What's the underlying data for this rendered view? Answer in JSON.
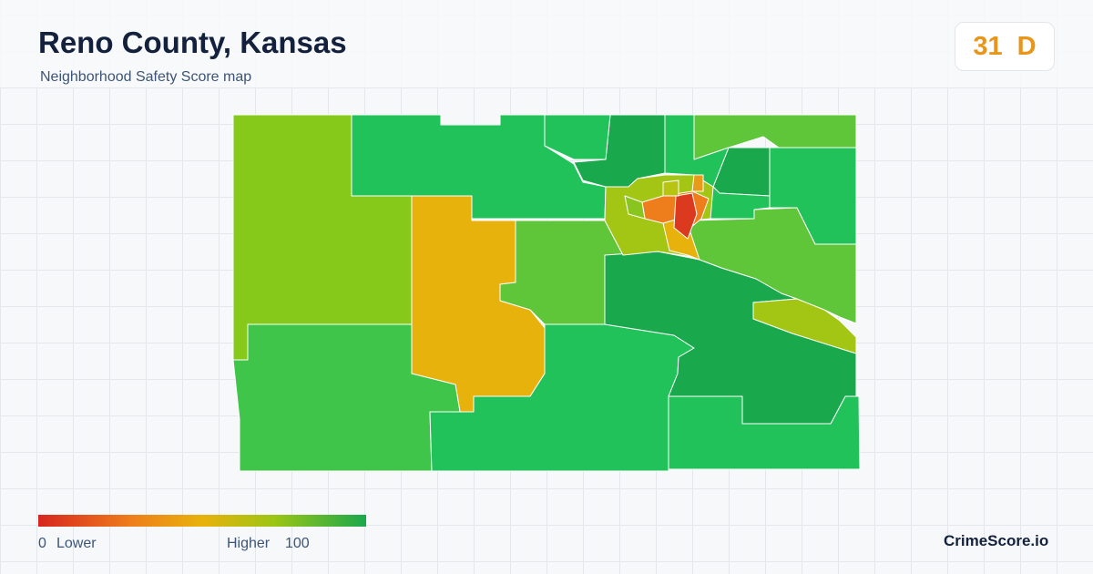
{
  "header": {
    "title": "Reno County, Kansas",
    "subtitle": "Neighborhood Safety Score map"
  },
  "score": {
    "value": 31,
    "grade": "D"
  },
  "legend": {
    "min": 0,
    "min_label": "Lower",
    "max_label": "Higher",
    "max": 100
  },
  "brand": "CrimeScore.io"
}
